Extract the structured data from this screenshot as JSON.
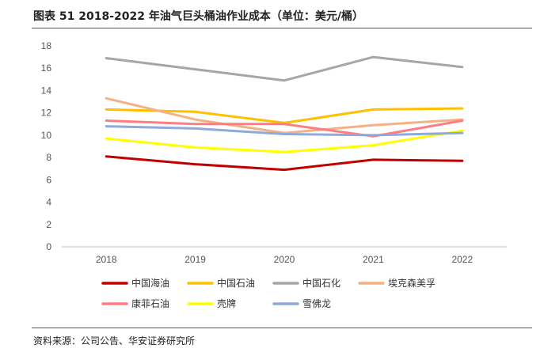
{
  "header": {
    "title": "图表 51 2018-2022 年油气巨头桶油作业成本（单位：美元/桶）"
  },
  "footer": {
    "source": "资料来源：公司公告、华安证券研究所"
  },
  "chart_data": {
    "type": "line",
    "title": "图表 51 2018-2022 年油气巨头桶油作业成本（单位：美元/桶）",
    "xlabel": "",
    "ylabel": "",
    "x": [
      "2018",
      "2019",
      "2020",
      "2021",
      "2022"
    ],
    "ylim": [
      0,
      18
    ],
    "yticks": [
      0,
      2,
      4,
      6,
      8,
      10,
      12,
      14,
      16,
      18
    ],
    "grid": false,
    "legend_position": "bottom",
    "series": [
      {
        "name": "中国海油",
        "color": "#C00000",
        "values": [
          8.1,
          7.4,
          6.9,
          7.8,
          7.7
        ]
      },
      {
        "name": "中国石油",
        "color": "#FFC000",
        "values": [
          12.3,
          12.1,
          11.1,
          12.3,
          12.4
        ]
      },
      {
        "name": "中国石化",
        "color": "#A6A6A6",
        "values": [
          16.9,
          15.9,
          14.9,
          17.0,
          16.1
        ]
      },
      {
        "name": "埃克森美孚",
        "color": "#F4B183",
        "values": [
          13.3,
          11.4,
          10.2,
          10.9,
          11.4
        ]
      },
      {
        "name": "康菲石油",
        "color": "#FF7C80",
        "values": [
          11.3,
          11.0,
          11.0,
          9.9,
          11.3
        ]
      },
      {
        "name": "壳牌",
        "color": "#FFFF00",
        "values": [
          9.7,
          8.9,
          8.5,
          9.1,
          10.4
        ]
      },
      {
        "name": "雪佛龙",
        "color": "#8EA9DB",
        "values": [
          10.8,
          10.6,
          10.1,
          10.0,
          10.2
        ]
      }
    ]
  }
}
